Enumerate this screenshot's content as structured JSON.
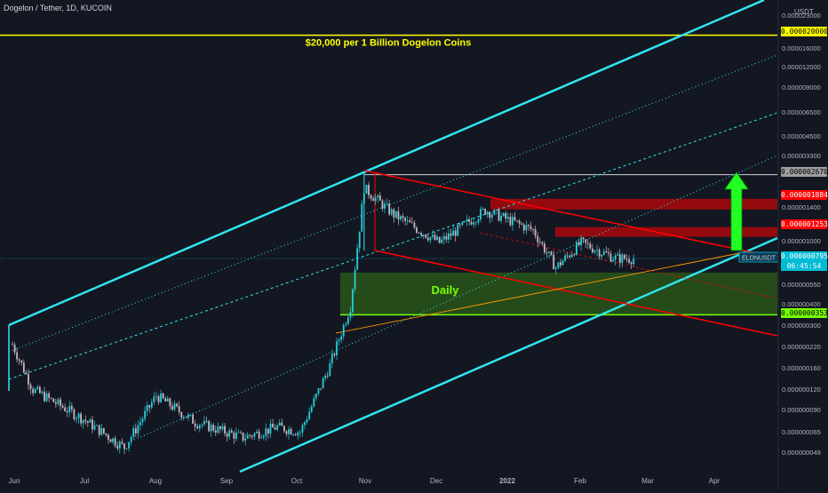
{
  "header": {
    "title": "Dogelon / Tether, 1D, KUCOIN"
  },
  "y_axis": {
    "currency": "USDT",
    "ticks": [
      "0.000023000",
      "0.000016000",
      "0.000012000",
      "0.000009000",
      "0.000006500",
      "0.000004500",
      "0.000003300",
      "0.000001400",
      "0.000001000",
      "0.000000550",
      "0.000000400",
      "0.000000300",
      "0.000000220",
      "0.000000160",
      "0.000000120",
      "0.000000090",
      "0.000000065",
      "0.000000049"
    ]
  },
  "x_axis": {
    "ticks": [
      "Jun",
      "Jul",
      "Aug",
      "Sep",
      "Oct",
      "Nov",
      "Dec",
      "2022",
      "Feb",
      "Mar",
      "Apr"
    ]
  },
  "price_labels": [
    {
      "text": "0.000020000",
      "bg": "#ffff00",
      "fg": "#000000"
    },
    {
      "text": "0.000002670",
      "bg": "#9e9e9e",
      "fg": "#000000"
    },
    {
      "text": "0.000001884",
      "bg": "#ff0000",
      "fg": "#ffffff"
    },
    {
      "text": "0.000001253",
      "bg": "#ff0000",
      "fg": "#ffffff"
    },
    {
      "text": "0.000000795",
      "bg": "#00bcd4",
      "fg": "#ffffff"
    },
    {
      "text": "06:45:54",
      "bg": "#00bcd4",
      "fg": "#ffffff"
    },
    {
      "text": "0.000000353",
      "bg": "#76ff03",
      "fg": "#000000"
    }
  ],
  "annotations": {
    "billion_text": "$20,000 per 1 Billion Dogelon Coins",
    "daily_text": "Daily",
    "symbol_tag": "ELONUSDT"
  },
  "colors": {
    "background": "#131722",
    "channel": "#2ee6f0",
    "up_candle": "#26d0d8",
    "down_candle": "#c8b6c2",
    "resistance": "#ff0000",
    "support_zone": "#2e5d1a",
    "support_line": "#76ff03",
    "target_line": "#ffff00",
    "arrow": "#22ff22"
  },
  "chart_data": {
    "type": "candlestick",
    "title": "Dogelon / Tether, 1D, KUCOIN",
    "y_scale": "log",
    "ylim": [
      4.5e-08,
      3e-05
    ],
    "x_range": [
      "2021-06-01",
      "2022-04-30"
    ],
    "horizontal_levels": [
      2e-05,
      2.67e-06,
      1.884e-06,
      1.253e-06,
      7.95e-07,
      3.53e-07
    ],
    "last_price": 7.95e-07,
    "keypoints": [
      {
        "date": "2021-06-01",
        "close": 2.3e-07
      },
      {
        "date": "2021-06-10",
        "close": 1.2e-07
      },
      {
        "date": "2021-07-01",
        "close": 8e-08
      },
      {
        "date": "2021-07-20",
        "close": 5.2e-08
      },
      {
        "date": "2021-08-03",
        "close": 1.1e-07
      },
      {
        "date": "2021-08-20",
        "close": 7.5e-08
      },
      {
        "date": "2021-09-10",
        "close": 6e-08
      },
      {
        "date": "2021-09-25",
        "close": 7e-08
      },
      {
        "date": "2021-10-05",
        "close": 6.5e-08
      },
      {
        "date": "2021-10-18",
        "close": 1.7e-07
      },
      {
        "date": "2021-10-27",
        "close": 4e-07
      },
      {
        "date": "2021-11-02",
        "close": 2.2e-06
      },
      {
        "date": "2021-11-15",
        "close": 1.5e-06
      },
      {
        "date": "2021-12-05",
        "close": 1e-06
      },
      {
        "date": "2021-12-25",
        "close": 1.6e-06
      },
      {
        "date": "2022-01-15",
        "close": 1.2e-06
      },
      {
        "date": "2022-01-25",
        "close": 7e-07
      },
      {
        "date": "2022-02-05",
        "close": 1e-06
      },
      {
        "date": "2022-02-20",
        "close": 8e-07
      },
      {
        "date": "2022-02-28",
        "close": 7.95e-07
      }
    ]
  }
}
